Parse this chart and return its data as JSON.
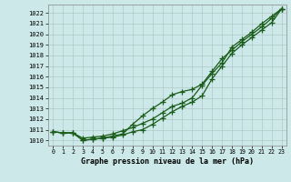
{
  "title": "",
  "xlabel": "Graphe pression niveau de la mer (hPa)",
  "ylabel": "",
  "background_color": "#cce8e8",
  "grid_color": "#b0c8c8",
  "line_color": "#1a5c1a",
  "marker": "+",
  "ylim": [
    1009.5,
    1022.8
  ],
  "xlim": [
    -0.5,
    23.5
  ],
  "yticks": [
    1010,
    1011,
    1012,
    1013,
    1014,
    1015,
    1016,
    1017,
    1018,
    1019,
    1020,
    1021,
    1022
  ],
  "xticks": [
    0,
    1,
    2,
    3,
    4,
    5,
    6,
    7,
    8,
    9,
    10,
    11,
    12,
    13,
    14,
    15,
    16,
    17,
    18,
    19,
    20,
    21,
    22,
    23
  ],
  "series": {
    "line_top": [
      1010.8,
      1010.7,
      1010.7,
      1010.2,
      1010.3,
      1010.4,
      1010.6,
      1010.9,
      1011.2,
      1011.6,
      1012.0,
      1012.6,
      1013.2,
      1013.5,
      1014.0,
      1015.2,
      1016.3,
      1017.3,
      1018.8,
      1019.5,
      1020.2,
      1021.0,
      1021.7,
      1022.4
    ],
    "line_mid": [
      1010.8,
      1010.7,
      1010.7,
      1010.0,
      1010.1,
      1010.2,
      1010.4,
      1010.6,
      1011.5,
      1012.3,
      1013.0,
      1013.6,
      1014.3,
      1014.6,
      1014.8,
      1015.3,
      1016.5,
      1017.7,
      1018.5,
      1019.3,
      1020.0,
      1020.7,
      1021.5,
      1022.4
    ],
    "line_bot": [
      1010.8,
      1010.7,
      1010.7,
      1010.0,
      1010.1,
      1010.2,
      1010.3,
      1010.5,
      1010.8,
      1011.0,
      1011.5,
      1012.1,
      1012.7,
      1013.2,
      1013.6,
      1014.2,
      1015.8,
      1017.0,
      1018.2,
      1019.0,
      1019.7,
      1020.4,
      1021.1,
      1022.4
    ]
  }
}
